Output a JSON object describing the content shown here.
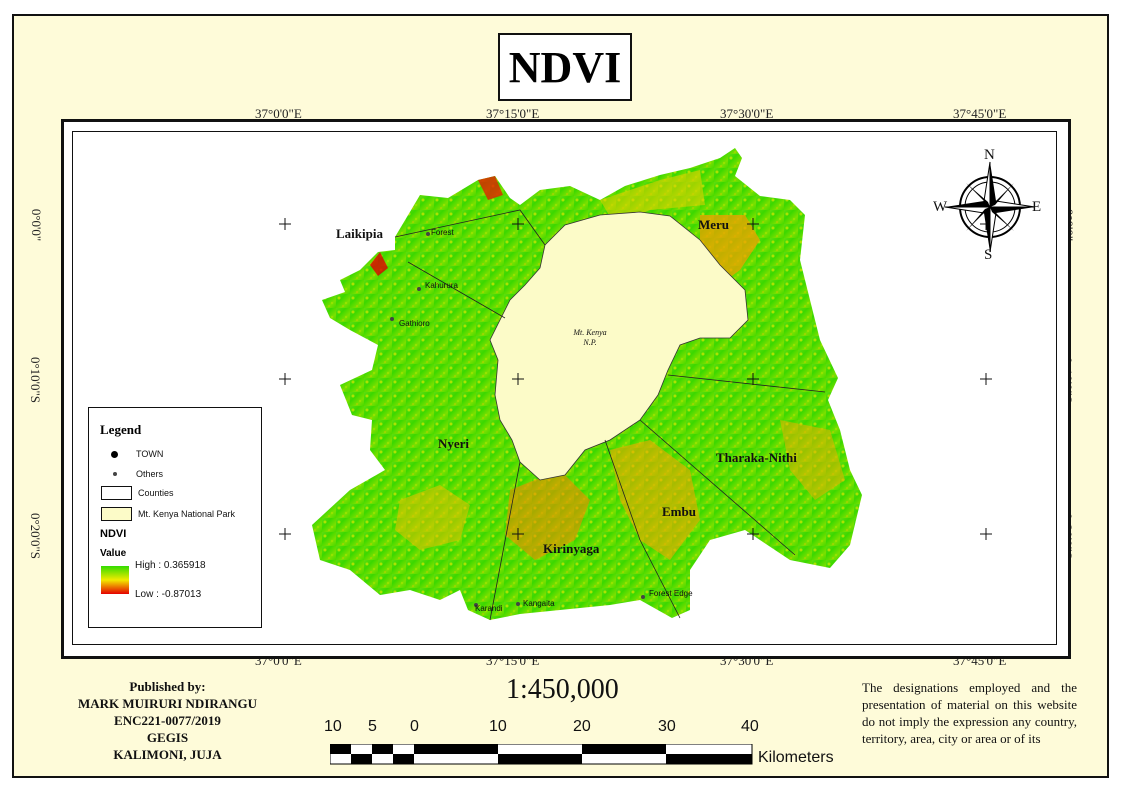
{
  "title": "NDVI",
  "grid": {
    "lon_labels": [
      "37°0'0\"E",
      "37°15'0\"E",
      "37°30'0\"E",
      "37°45'0\"E"
    ],
    "lat_labels": [
      "0°0'0\"",
      "0°10'0\"S",
      "0°20'0\"S"
    ]
  },
  "places": {
    "counties": [
      "Laikipia",
      "Meru",
      "Nyeri",
      "Tharaka-Nithi",
      "Embu",
      "Kirinyaga"
    ],
    "park_line1": "Mt. Kenya",
    "park_line2": "N.P.",
    "towns": [
      "Forest",
      "Kahurura",
      "Gathioro",
      "Karandi",
      "Kangaita",
      "Forest Edge"
    ]
  },
  "compass": {
    "n": "N",
    "s": "S",
    "e": "E",
    "w": "W"
  },
  "legend": {
    "title": "Legend",
    "town": "TOWN",
    "others": "Others",
    "counties": "Counties",
    "park": "Mt. Kenya National Park",
    "ndvi": "NDVI",
    "value": "Value",
    "high": "High : 0.365918",
    "low": "Low : -0.87013"
  },
  "colors": {
    "high": "#32dc00",
    "mid": "#f2ea00",
    "low": "#e50000",
    "park": "#fcfbc8",
    "sheet": "#fefbd9"
  },
  "publisher": {
    "line1": "Published by:",
    "line2": "MARK MUIRURI NDIRANGU",
    "line3": "ENC221-0077/2019",
    "line4": "GEGIS",
    "line5": "KALIMONI, JUJA"
  },
  "scale": {
    "ratio": "1:450,000",
    "ticks": [
      "10",
      "5",
      "0",
      "10",
      "20",
      "30",
      "40"
    ],
    "unit": "Kilometers"
  },
  "disclaimer": "The designations employed and the presentation of material on this website do not imply the expression any country, territory, area, city or area or of its"
}
